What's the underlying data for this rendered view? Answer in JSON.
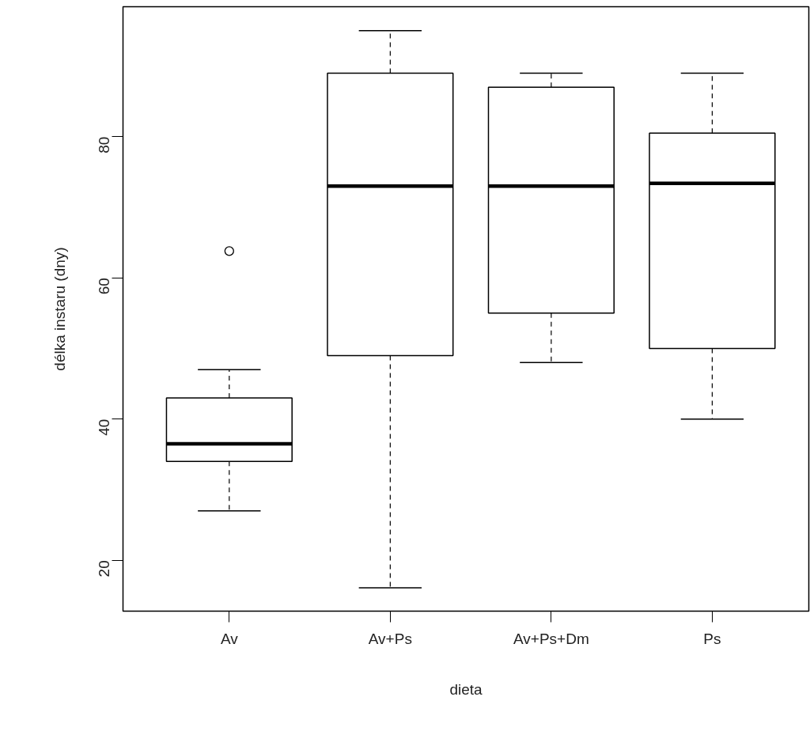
{
  "chart_data": {
    "type": "box",
    "xlabel": "dieta",
    "ylabel": "délka instaru (dny)",
    "categories": [
      "Av",
      "Av+Ps",
      "Av+Ps+Dm",
      "Ps"
    ],
    "boxes": [
      {
        "low": 27,
        "q1": 34,
        "median": 36.5,
        "q3": 43,
        "high": 47,
        "outliers": [
          63.8
        ]
      },
      {
        "low": 16.1,
        "q1": 49,
        "median": 73,
        "q3": 89,
        "high": 95
      },
      {
        "low": 48,
        "q1": 55,
        "median": 73,
        "q3": 87,
        "high": 89
      },
      {
        "low": 40,
        "q1": 50,
        "median": 73.4,
        "q3": 80.5,
        "high": 89
      }
    ],
    "ylim": [
      12.8,
      98.4
    ],
    "yticks": [
      20,
      40,
      60,
      80
    ]
  }
}
